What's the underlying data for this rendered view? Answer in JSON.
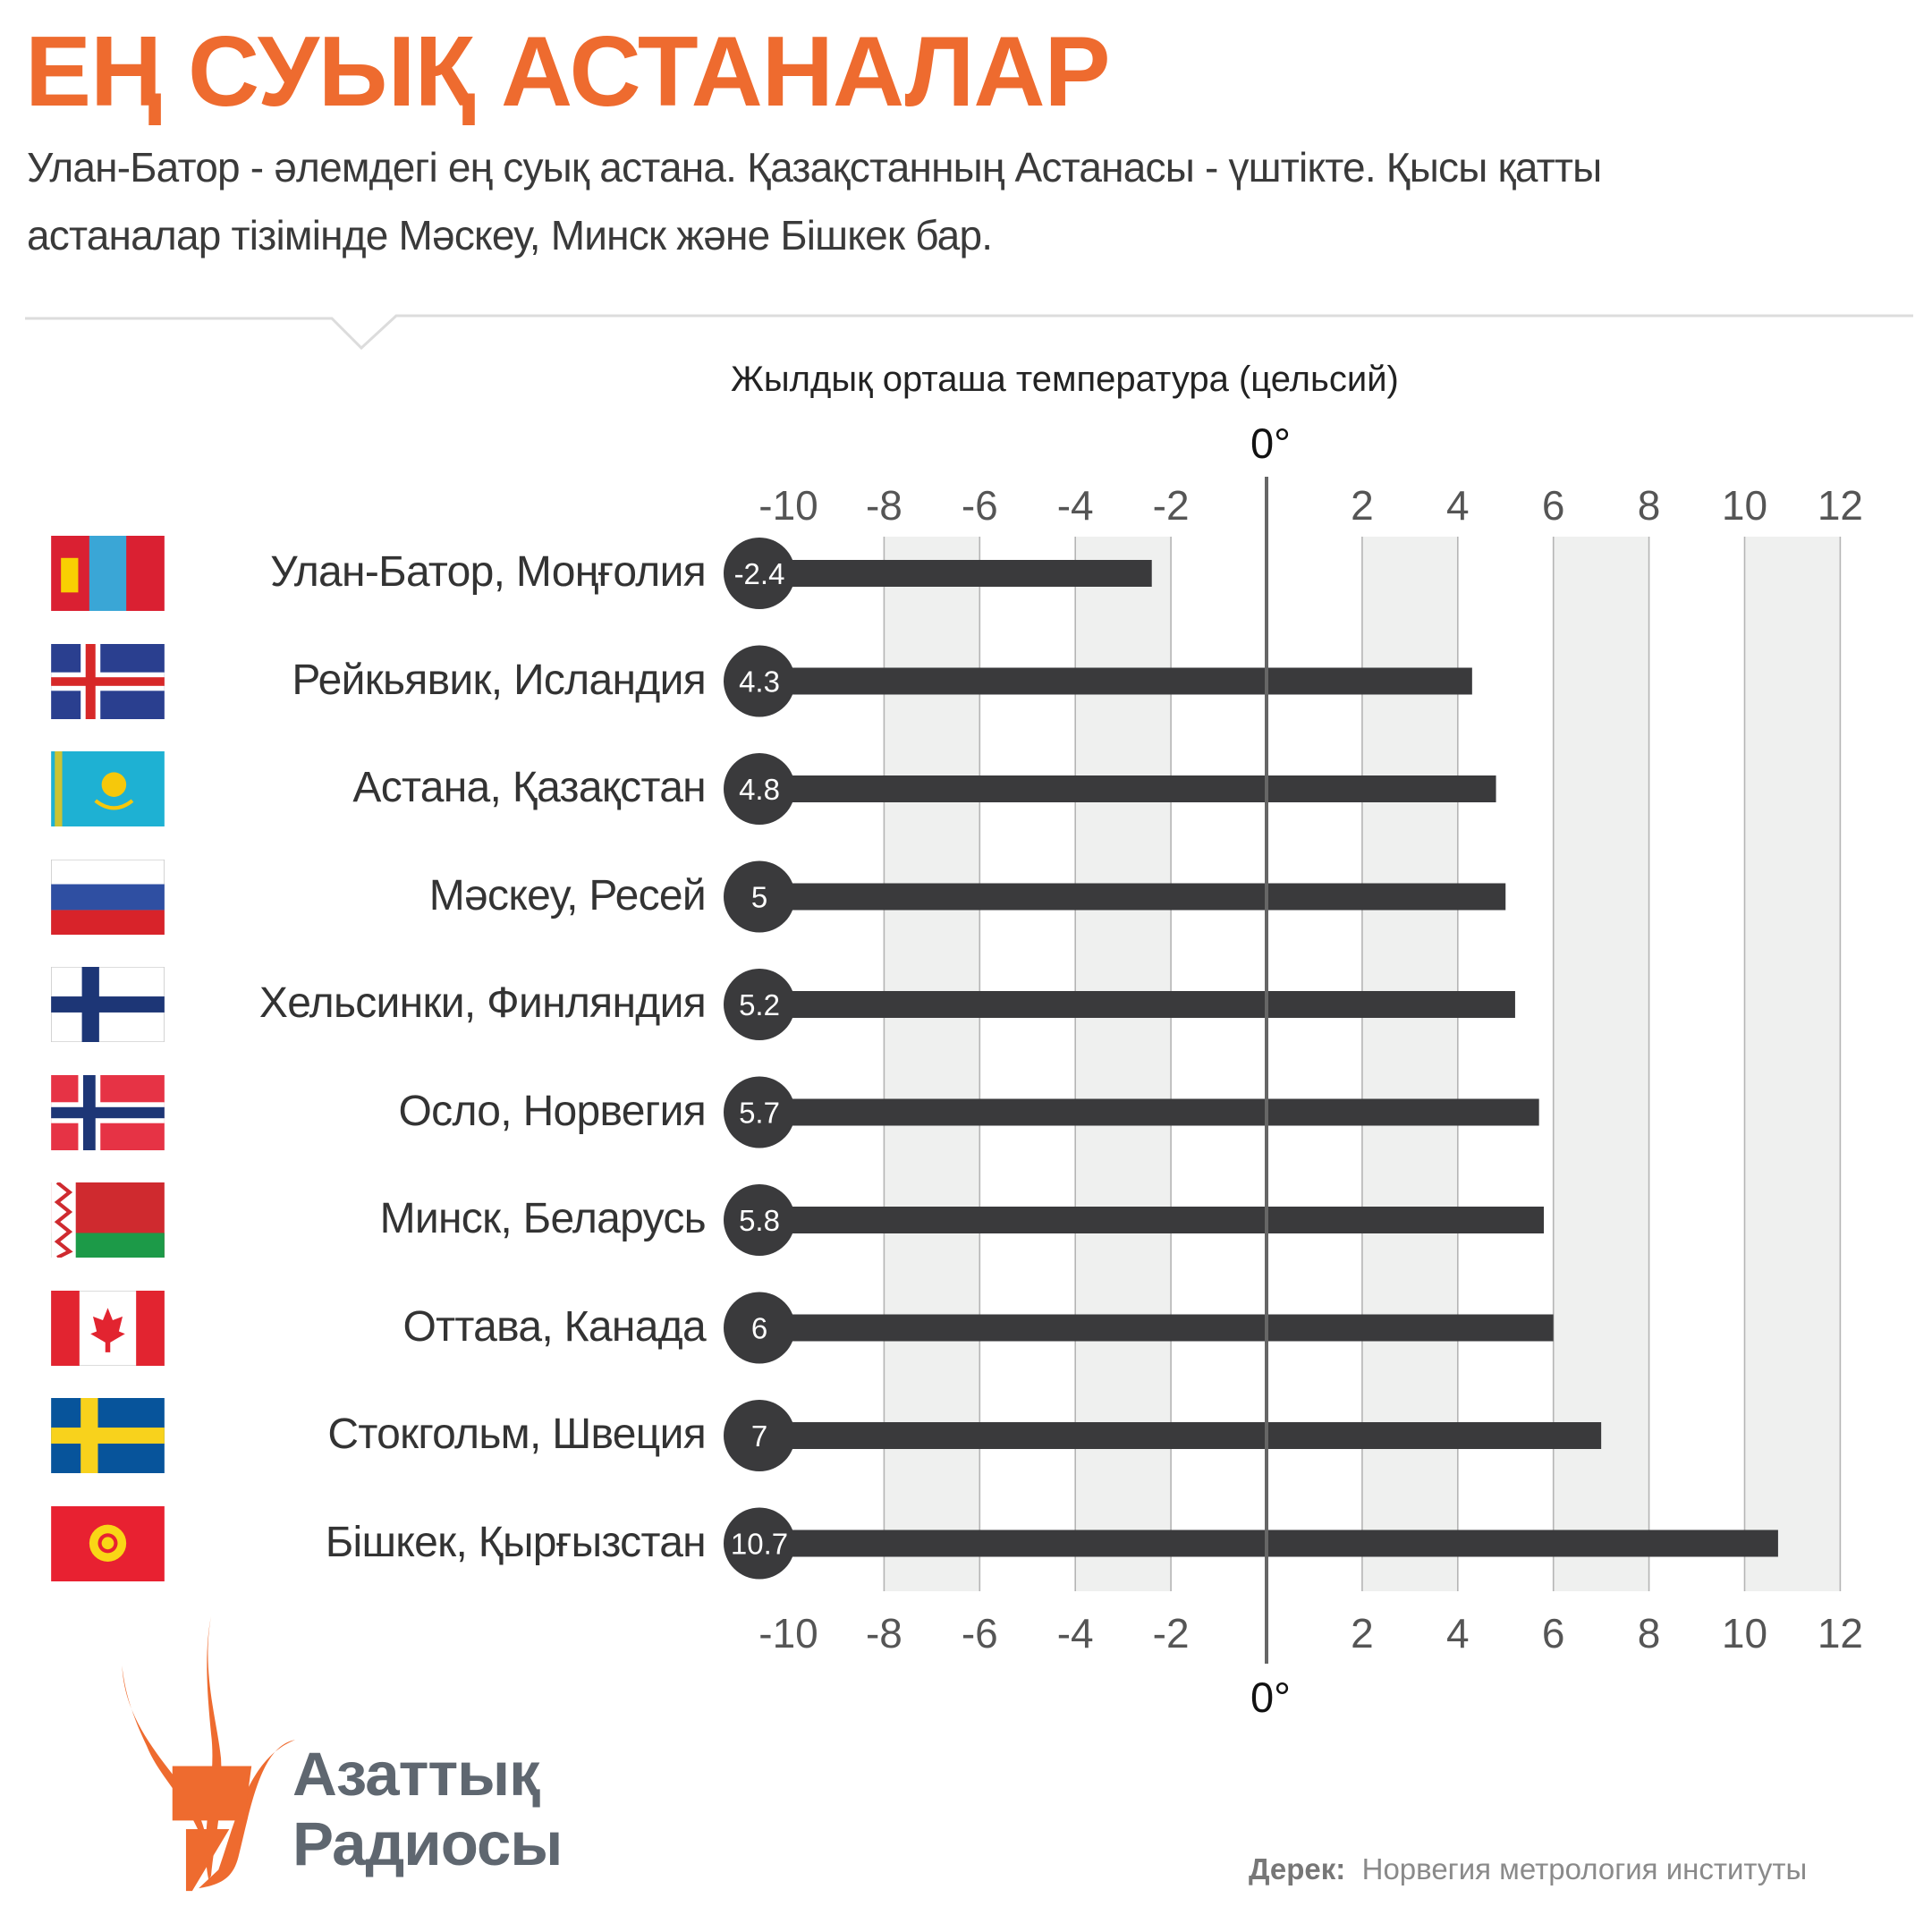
{
  "header": {
    "title": "ЕҢ СУЫҚ АСТАНАЛАР",
    "subtitle_line1": "Улан-Батор - әлемдегі ең суық астана. Қазақстанның Астанасы - үштікте. Қысы қатты",
    "subtitle_line2": "астаналар тізімінде Мәскеу, Минск және Бішкек бар."
  },
  "chart_data": {
    "type": "bar",
    "orientation": "horizontal",
    "title": "Жылдық орташа температура (цельсий)",
    "zero_label": "0°",
    "xlim": [
      -10,
      12
    ],
    "xticks": [
      "-10",
      "-8",
      "-6",
      "-4",
      "-2",
      "2",
      "4",
      "6",
      "8",
      "10",
      "12"
    ],
    "grid": true,
    "categories": [
      "Улан-Батор, Моңғолия",
      "Рейкьявик, Исландия",
      "Астана, Қазақстан",
      "Мәскеу, Ресей",
      "Хельсинки, Финляндия",
      "Осло, Норвегия",
      "Минск, Беларусь",
      "Оттава, Канада",
      "Стокгольм, Швеция",
      "Бішкек, Қырғызстан"
    ],
    "values": [
      -2.4,
      4.3,
      4.8,
      5,
      5.2,
      5.7,
      5.8,
      6,
      7,
      10.7
    ],
    "value_labels": [
      "-2.4",
      "4.3",
      "4.8",
      "5",
      "5.2",
      "5.7",
      "5.8",
      "6",
      "7",
      "10.7"
    ],
    "flags": [
      "mongolia",
      "iceland",
      "kazakhstan",
      "russia",
      "finland",
      "norway",
      "belarus",
      "canada",
      "sweden",
      "kyrgyzstan"
    ],
    "bar_color": "#3a3a3c",
    "band_color": "#eff0ef"
  },
  "footer": {
    "logo_line1": "Азаттық",
    "logo_line2": "Радиосы",
    "source_label": "Дерек:",
    "source_text": "Норвегия метрология институты"
  },
  "colors": {
    "accent": "#ee6b2f",
    "logo_gray": "#5f6770"
  }
}
